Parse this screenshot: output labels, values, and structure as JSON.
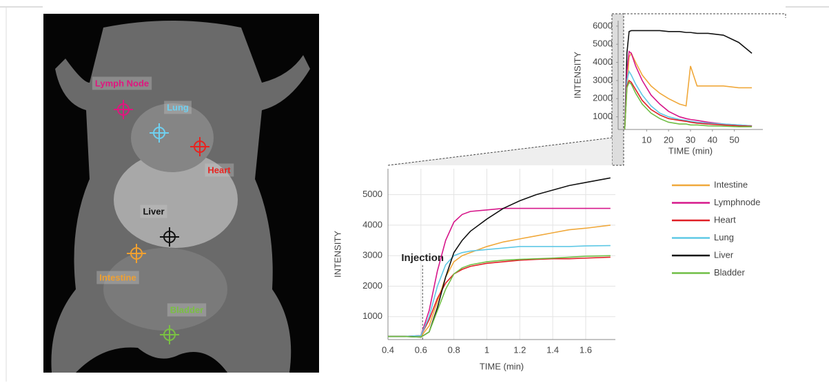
{
  "image": {
    "labels": [
      {
        "text": "Lymph Node",
        "color": "#e0167f"
      },
      {
        "text": "Lung",
        "color": "#6fd0f0"
      },
      {
        "text": "Heart",
        "color": "#e8231f"
      },
      {
        "text": "Liver",
        "color": "#111111"
      },
      {
        "text": "Intestine",
        "color": "#f0a030"
      },
      {
        "text": "Bladder",
        "color": "#7ac043"
      }
    ]
  },
  "chart_data": [
    {
      "type": "line",
      "x_label": "TIME (min)",
      "y_label": "INTENSITY",
      "annotation": {
        "text": "Injection",
        "x": 0.61
      },
      "x": [
        0.4,
        0.5,
        0.6,
        0.65,
        0.7,
        0.75,
        0.8,
        0.85,
        0.9,
        1.0,
        1.1,
        1.2,
        1.3,
        1.4,
        1.5,
        1.6,
        1.75
      ],
      "xlim": [
        0.4,
        1.78
      ],
      "xticks": [
        0.4,
        0.6,
        0.8,
        1,
        1.2,
        1.4,
        1.6
      ],
      "ylim": [
        250,
        5850
      ],
      "yticks": [
        1000,
        2000,
        3000,
        4000,
        5000
      ],
      "grid": true,
      "legend": "right",
      "series": [
        {
          "name": "Intestine",
          "color": "#f0a83a",
          "values": [
            350,
            350,
            350,
            700,
            1500,
            2300,
            2800,
            3000,
            3100,
            3300,
            3450,
            3550,
            3650,
            3750,
            3850,
            3900,
            4000
          ]
        },
        {
          "name": "Lymphnode",
          "color": "#d6168a",
          "values": [
            350,
            350,
            380,
            1200,
            2500,
            3500,
            4100,
            4350,
            4450,
            4500,
            4550,
            4550,
            4550,
            4550,
            4550,
            4550,
            4550
          ]
        },
        {
          "name": "Heart",
          "color": "#e01f26",
          "values": [
            350,
            350,
            380,
            900,
            1600,
            2100,
            2400,
            2550,
            2650,
            2750,
            2800,
            2850,
            2880,
            2900,
            2900,
            2920,
            2950
          ]
        },
        {
          "name": "Lung",
          "color": "#5ec8e5",
          "values": [
            350,
            350,
            380,
            1000,
            2000,
            2700,
            3000,
            3100,
            3150,
            3200,
            3250,
            3300,
            3300,
            3300,
            3300,
            3320,
            3330
          ]
        },
        {
          "name": "Liver",
          "color": "#111111",
          "values": [
            350,
            350,
            330,
            500,
            1300,
            2300,
            3100,
            3500,
            3800,
            4200,
            4550,
            4800,
            5000,
            5150,
            5300,
            5400,
            5550
          ]
        },
        {
          "name": "Bladder",
          "color": "#6fbe44",
          "values": [
            350,
            350,
            330,
            500,
            1200,
            1900,
            2400,
            2600,
            2700,
            2800,
            2850,
            2880,
            2900,
            2920,
            2950,
            2980,
            3000
          ]
        }
      ]
    },
    {
      "type": "line",
      "x_label": "TIME (min)",
      "y_label": "INTENSITY",
      "x": [
        0,
        1,
        2,
        3,
        5,
        8,
        12,
        16,
        20,
        25,
        28,
        30,
        33,
        38,
        45,
        52,
        58
      ],
      "xlim": [
        -3,
        63
      ],
      "xticks": [
        10,
        20,
        30,
        40,
        50
      ],
      "ylim": [
        300,
        6300
      ],
      "yticks": [
        1000,
        2000,
        3000,
        4000,
        5000,
        6000
      ],
      "grid": false,
      "series": [
        {
          "color": "#111111",
          "values": [
            300,
            4500,
            5700,
            5750,
            5750,
            5750,
            5750,
            5750,
            5700,
            5700,
            5650,
            5650,
            5600,
            5600,
            5500,
            5100,
            4500
          ]
        },
        {
          "color": "#f0a83a",
          "values": [
            300,
            2500,
            4300,
            4500,
            4000,
            3300,
            2700,
            2300,
            2000,
            1700,
            1600,
            3800,
            2700,
            2700,
            2700,
            2600,
            2600
          ]
        },
        {
          "color": "#d6168a",
          "values": [
            300,
            3500,
            4600,
            4500,
            3800,
            3000,
            2200,
            1700,
            1300,
            1000,
            900,
            850,
            800,
            700,
            600,
            550,
            500
          ]
        },
        {
          "color": "#5ec8e5",
          "values": [
            300,
            3000,
            3500,
            3300,
            2800,
            2200,
            1600,
            1200,
            1000,
            850,
            800,
            750,
            700,
            650,
            600,
            550,
            500
          ]
        },
        {
          "color": "#e01f26",
          "values": [
            300,
            2700,
            3000,
            2900,
            2500,
            1900,
            1400,
            1100,
            900,
            800,
            750,
            700,
            650,
            600,
            550,
            500,
            480
          ]
        },
        {
          "color": "#6fbe44",
          "values": [
            300,
            2600,
            2900,
            2800,
            2300,
            1700,
            1200,
            900,
            700,
            600,
            600,
            550,
            550,
            500,
            480,
            450,
            450
          ]
        }
      ]
    }
  ]
}
